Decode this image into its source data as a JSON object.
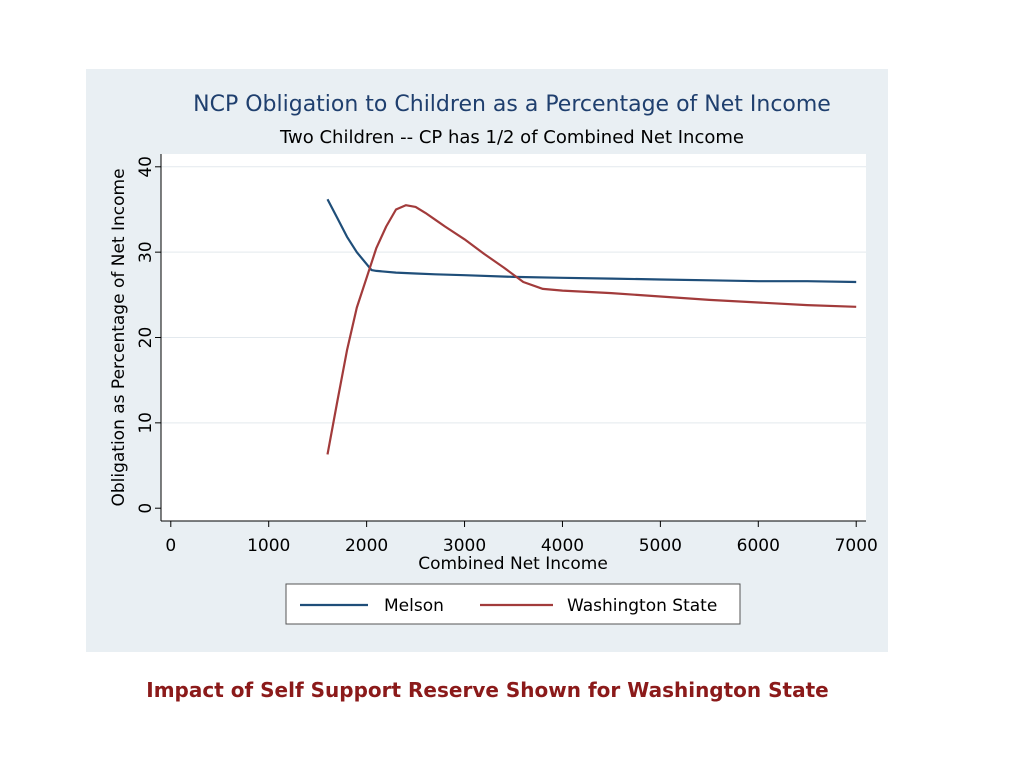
{
  "caption": "Impact of Self Support Reserve Shown for Washington State",
  "colors": {
    "panel_bg": "#e9eff3",
    "plot_bg": "#ffffff",
    "grid": "#e3e9ee",
    "caption": "#8b1a1a",
    "title": "#1f3f6e"
  },
  "chart_data": {
    "type": "line",
    "title": "NCP Obligation to Children as a Percentage of Net Income",
    "subtitle": "Two Children -- CP has 1/2 of Combined Net Income",
    "xlabel": "Combined Net Income",
    "ylabel": "Obligation as Percentage of Net Income",
    "xlim": [
      -100,
      7100
    ],
    "ylim": [
      -1.5,
      41.5
    ],
    "x_ticks": [
      0,
      1000,
      2000,
      3000,
      4000,
      5000,
      6000,
      7000
    ],
    "y_ticks": [
      0,
      10,
      20,
      30,
      40
    ],
    "grid": true,
    "legend_position": "bottom",
    "series": [
      {
        "name": "Melson",
        "color": "#1f4e79",
        "x": [
          1600,
          1700,
          1800,
          1900,
          2000,
          2050,
          2100,
          2300,
          2500,
          2700,
          3000,
          3500,
          4000,
          4500,
          5000,
          5500,
          6000,
          6500,
          7000
        ],
        "y": [
          36.2,
          34.0,
          31.8,
          30.0,
          28.6,
          27.9,
          27.8,
          27.6,
          27.5,
          27.4,
          27.3,
          27.1,
          27.0,
          26.9,
          26.8,
          26.7,
          26.6,
          26.6,
          26.5
        ]
      },
      {
        "name": "Washington State",
        "color": "#a23b3b",
        "x": [
          1600,
          1700,
          1800,
          1900,
          2000,
          2100,
          2200,
          2300,
          2400,
          2500,
          2600,
          2700,
          2800,
          3000,
          3200,
          3400,
          3600,
          3800,
          4000,
          4500,
          5000,
          5500,
          6000,
          6500,
          7000
        ],
        "y": [
          6.3,
          12.5,
          18.5,
          23.5,
          27.0,
          30.5,
          33.0,
          35.0,
          35.5,
          35.3,
          34.6,
          33.8,
          33.0,
          31.5,
          29.8,
          28.2,
          26.5,
          25.7,
          25.5,
          25.2,
          24.8,
          24.4,
          24.1,
          23.8,
          23.6
        ]
      }
    ]
  }
}
